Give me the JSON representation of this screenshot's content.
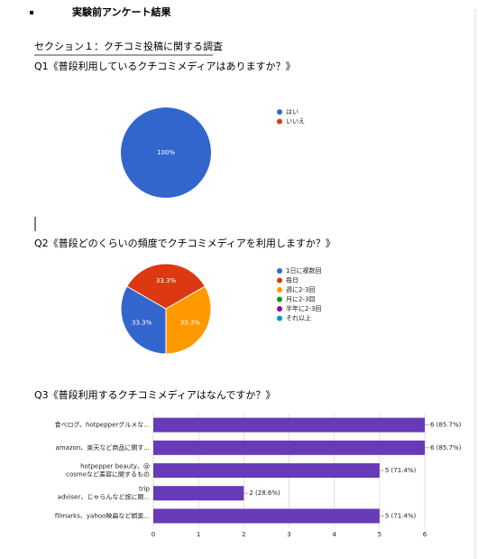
{
  "document": {
    "title": "実験前アンケート結果",
    "section": "セクション１：クチコミ投稿に関する調査",
    "questions": [
      "Q1《普段利用しているクチコミメディアはありますか？》",
      "Q2《普段どのくらいの頻度でクチコミメディアを利用しますか？》",
      "Q3《普段利用するクチコミメディアはなんですか？》"
    ]
  },
  "chart_data": [
    {
      "type": "pie",
      "categories": [
        "はい",
        "いいえ"
      ],
      "values": [
        100,
        0
      ],
      "value_labels": [
        "100%",
        null
      ],
      "colors": [
        "#3366cc",
        "#dc3912"
      ],
      "legend": "right"
    },
    {
      "type": "pie",
      "categories": [
        "1日に複数回",
        "毎日",
        "週に2-3回",
        "月に2-3回",
        "半年に2-3回",
        "それ以上"
      ],
      "values": [
        33.3,
        33.3,
        33.3,
        0,
        0,
        0
      ],
      "value_labels": [
        "33.3%",
        "33.3%",
        "33.3%",
        null,
        null,
        null
      ],
      "colors": [
        "#3366cc",
        "#dc3912",
        "#ff9900",
        "#109618",
        "#990099",
        "#0099c6"
      ],
      "legend": "right"
    },
    {
      "type": "hbar",
      "categories": [
        [
          "食べログ、hotpepperグルメな..."
        ],
        [
          "amazon、楽天など商品に関す..."
        ],
        [
          "hotpepper beauty、@",
          "cosmeなど美容に関するもの"
        ],
        [
          "trip",
          "adviser、じゃらんなど旅に関..."
        ],
        [
          "filmarks、yahoo映画など娯楽..."
        ]
      ],
      "values": [
        6,
        6,
        5,
        2,
        5
      ],
      "value_labels": [
        "6 (85.7%)",
        "6 (85.7%)",
        "5 (71.4%)",
        "2 (28.6%)",
        "5 (71.4%)"
      ],
      "color": "#673ab7",
      "xlim": [
        0,
        6
      ],
      "xticks": [
        0,
        1,
        2,
        3,
        4,
        5,
        6
      ],
      "grid": true
    }
  ]
}
